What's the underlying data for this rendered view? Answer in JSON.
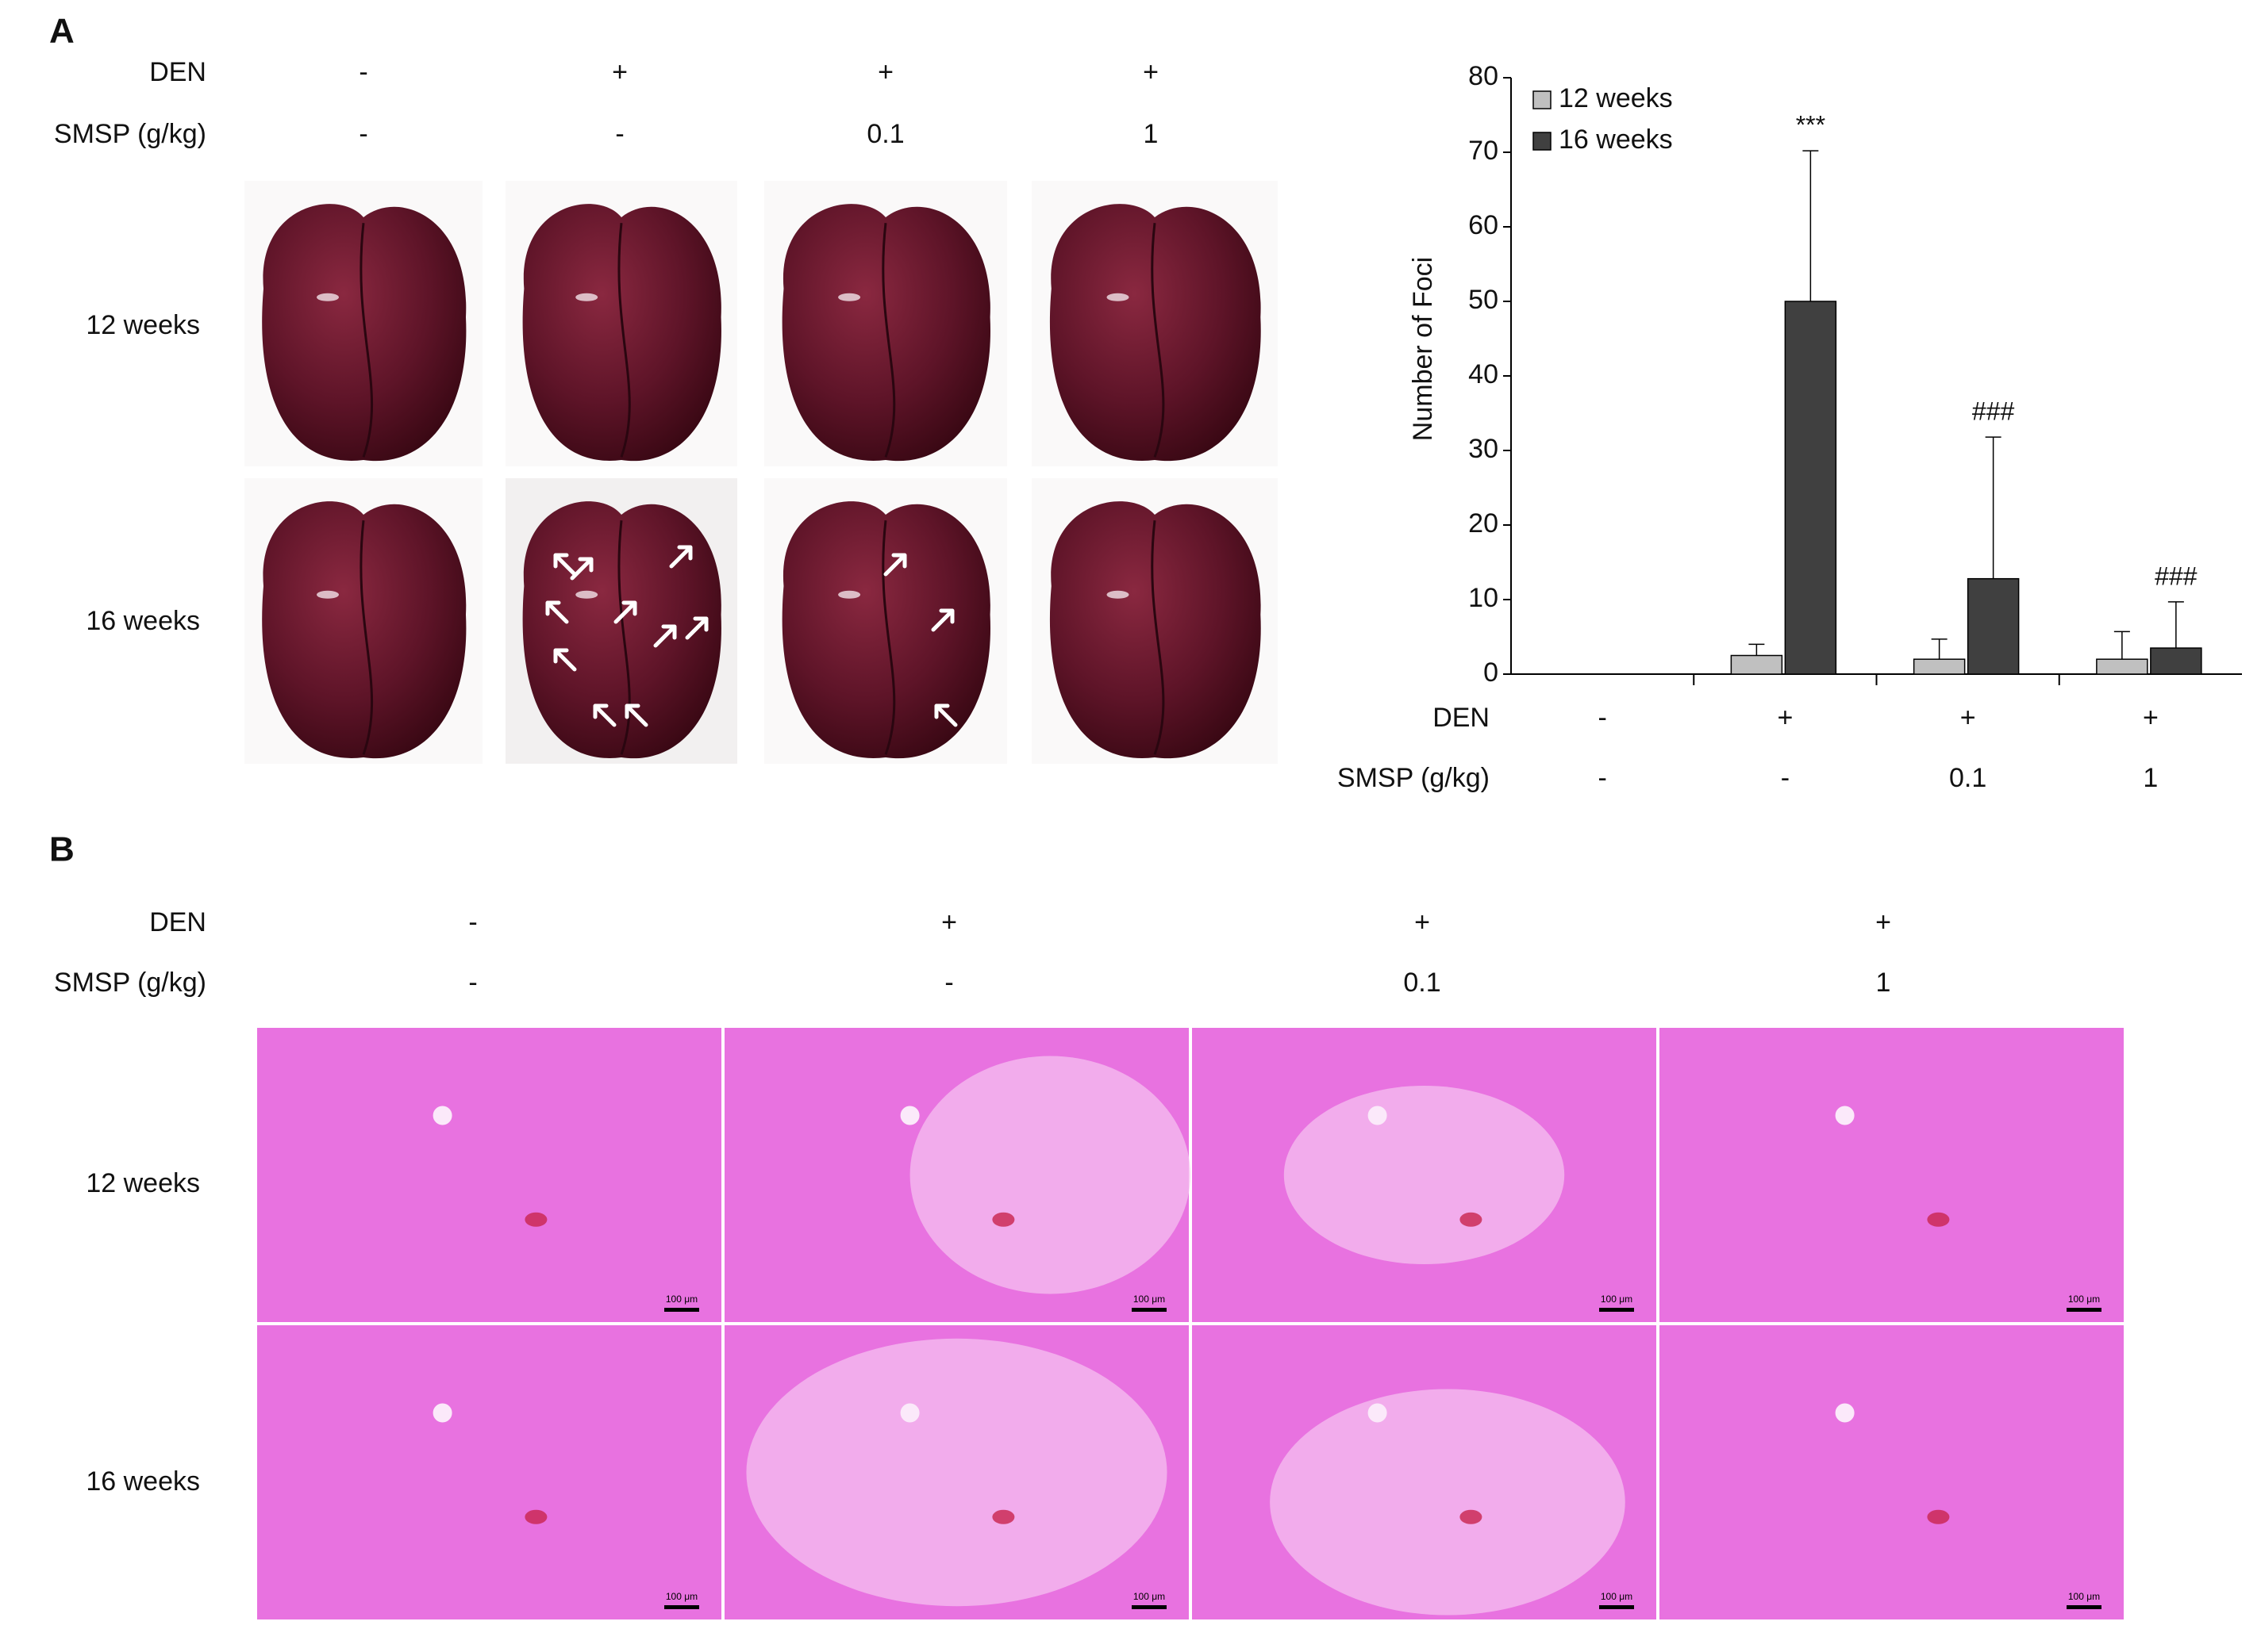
{
  "panel_a": {
    "label": "A",
    "row_labels": [
      "DEN",
      "SMSP (g/kg)"
    ],
    "columns": [
      [
        "-",
        "-"
      ],
      [
        "+",
        "-"
      ],
      [
        "+",
        "0.1"
      ],
      [
        "+",
        "1"
      ]
    ],
    "photo_rows": [
      "12 weeks",
      "16 weeks"
    ]
  },
  "chart_data": {
    "type": "bar",
    "ylabel": "Number of Foci",
    "category_levels": [
      "DEN",
      "SMSP (g/kg)"
    ],
    "categories": [
      [
        "-",
        "-"
      ],
      [
        "+",
        "-"
      ],
      [
        "+",
        "0.1"
      ],
      [
        "+",
        "1"
      ]
    ],
    "series": [
      {
        "name": "12 weeks",
        "color": "#c0c0c0",
        "values": [
          0,
          2.5,
          2,
          2
        ],
        "errors": [
          0,
          1.5,
          2.7,
          3.7
        ]
      },
      {
        "name": "16 weeks",
        "color": "#404040",
        "values": [
          0,
          50,
          12.8,
          3.5
        ],
        "errors": [
          0,
          20.2,
          19,
          6.2
        ],
        "value_annotations": [
          null,
          "***",
          "###",
          "###"
        ]
      }
    ],
    "ylim": [
      0,
      80
    ],
    "yticks": [
      0,
      10,
      20,
      30,
      40,
      50,
      60,
      70,
      80
    ],
    "legend": "upper left",
    "grid": false
  },
  "panel_b": {
    "label": "B",
    "row_labels": [
      "DEN",
      "SMSP (g/kg)"
    ],
    "columns": [
      [
        "-",
        "-"
      ],
      [
        "+",
        "-"
      ],
      [
        "+",
        "0.1"
      ],
      [
        "+",
        "1"
      ]
    ],
    "image_rows": [
      "12 weeks",
      "16 weeks"
    ],
    "scale_label": "100 μm"
  }
}
